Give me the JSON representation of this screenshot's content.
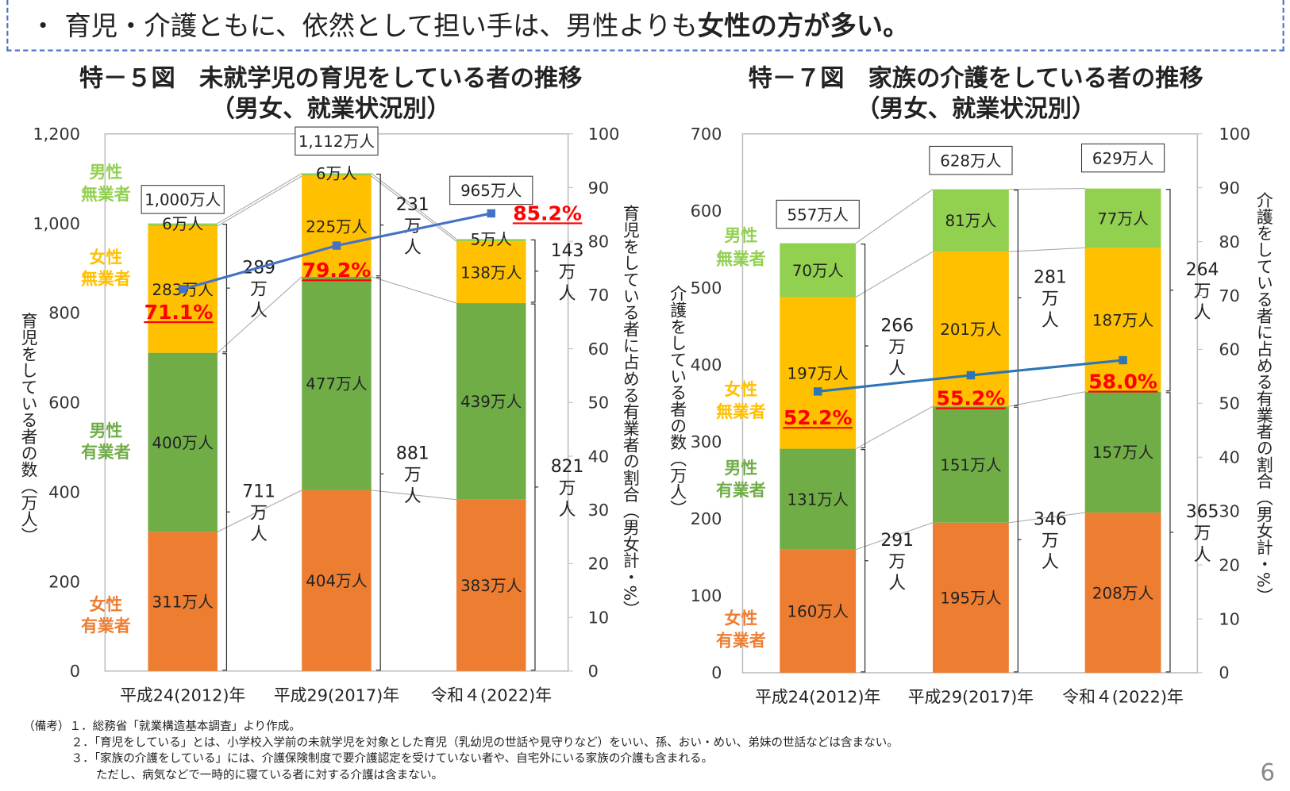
{
  "header": {
    "text_normal": "・ 育児・介護ともに、依然として担い手は、男性よりも",
    "text_bold": "女性の方が多い。"
  },
  "chart_data": [
    {
      "type": "bar",
      "stacked": true,
      "title": "特－５図　未就学児の育児をしている者の推移",
      "subtitle": "（男女、就業状況別）",
      "categories": [
        "平成24(2012)年",
        "平成29(2017)年",
        "令和４(2022)年"
      ],
      "ylabel": "育児をしている者の数（万人）",
      "y2label": "育児をしている者に占める有業者の割合（男女計・%）",
      "ylim": [
        0,
        1200
      ],
      "yticks": [
        0,
        200,
        400,
        600,
        800,
        1000,
        1200
      ],
      "y2lim": [
        0,
        100
      ],
      "y2ticks": [
        0,
        10,
        20,
        30,
        40,
        50,
        60,
        70,
        80,
        90,
        100
      ],
      "unit": "万人",
      "series": [
        {
          "name": "女性有業者",
          "color": "#ED7D31",
          "values": [
            311,
            404,
            383
          ]
        },
        {
          "name": "男性有業者",
          "color": "#70AD47",
          "values": [
            400,
            477,
            439
          ]
        },
        {
          "name": "女性無業者",
          "color": "#FFC000",
          "values": [
            283,
            225,
            138
          ]
        },
        {
          "name": "男性無業者",
          "color": "#92D050",
          "values": [
            6,
            6,
            5
          ]
        }
      ],
      "totals": [
        "1,000万人",
        "1,112万人",
        "965万人"
      ],
      "employed_totals": [
        711,
        881,
        821
      ],
      "nonemployed_totals": [
        289,
        231,
        143
      ],
      "employed_share_pct": {
        "values": [
          71.1,
          79.2,
          85.2
        ],
        "labels": [
          "71.1%",
          "79.2%",
          "85.2%"
        ],
        "color": "#4472C4",
        "label_color": "#FF0000"
      }
    },
    {
      "type": "bar",
      "stacked": true,
      "title": "特－７図　家族の介護をしている者の推移",
      "subtitle": "（男女、就業状況別）",
      "categories": [
        "平成24(2012)年",
        "平成29(2017)年",
        "令和４(2022)年"
      ],
      "ylabel": "介護をしている者の数（万人）",
      "y2label": "介護をしている者に占める有業者の割合（男女計・%）",
      "ylim": [
        0,
        700
      ],
      "yticks": [
        0,
        100,
        200,
        300,
        400,
        500,
        600,
        700
      ],
      "y2lim": [
        0,
        100
      ],
      "y2ticks": [
        0,
        10,
        20,
        30,
        40,
        50,
        60,
        70,
        80,
        90,
        100
      ],
      "unit": "万人",
      "series": [
        {
          "name": "女性有業者",
          "color": "#ED7D31",
          "values": [
            160,
            195,
            208
          ]
        },
        {
          "name": "男性有業者",
          "color": "#70AD47",
          "values": [
            131,
            151,
            157
          ]
        },
        {
          "name": "女性無業者",
          "color": "#FFC000",
          "values": [
            197,
            201,
            187
          ]
        },
        {
          "name": "男性無業者",
          "color": "#92D050",
          "values": [
            70,
            81,
            77
          ]
        }
      ],
      "totals": [
        "557万人",
        "628万人",
        "629万人"
      ],
      "employed_totals": [
        291,
        346,
        365
      ],
      "nonemployed_totals": [
        266,
        281,
        264
      ],
      "employed_share_pct": {
        "values": [
          52.2,
          55.2,
          58.0
        ],
        "labels": [
          "52.2%",
          "55.2%",
          "58.0%"
        ],
        "color": "#2E75B6",
        "label_color": "#FF0000"
      }
    }
  ],
  "bracket_units": [
    "万",
    "人"
  ],
  "notes": [
    "（備考）１．総務省「就業構造基本調査」より作成。",
    "２．「育児をしている」とは、小学校入学前の未就学児を対象とした育児（乳幼児の世話や見守りなど）をいい、孫、おい・めい、弟妹の世話などは含まない。",
    "３．「家族の介護をしている」には、介護保険制度で要介護認定を受けていない者や、自宅外にいる家族の介護も含まれる。",
    "ただし、病気などで一時的に寝ている者に対する介護は含まない。"
  ],
  "page_number": "6"
}
